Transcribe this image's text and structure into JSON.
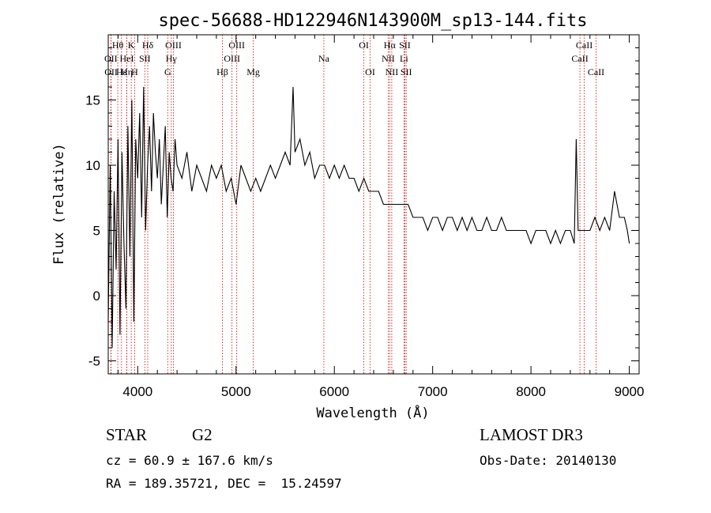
{
  "chart_data": {
    "type": "line",
    "title": "spec-56688-HD122946N143900M_sp13-144.fits",
    "xlabel": "Wavelength (Å)",
    "ylabel": "Flux (relative)",
    "xlim": [
      3700,
      9100
    ],
    "ylim": [
      -6,
      20
    ],
    "xticks": [
      4000,
      5000,
      6000,
      7000,
      8000,
      9000
    ],
    "yticks": [
      -5,
      0,
      5,
      10,
      15
    ],
    "line_color": "#000000",
    "marker_color": "#cc0000",
    "series": [
      {
        "x": [
          3700,
          3720,
          3740,
          3760,
          3780,
          3800,
          3820,
          3840,
          3860,
          3880,
          3900,
          3920,
          3940,
          3960,
          3980,
          4000,
          4020,
          4040,
          4060,
          4080,
          4100,
          4120,
          4140,
          4160,
          4180,
          4200,
          4220,
          4240,
          4260,
          4280,
          4300,
          4320,
          4340,
          4360,
          4380,
          4400,
          4450,
          4500,
          4550,
          4600,
          4650,
          4700,
          4750,
          4800,
          4850,
          4900,
          4950,
          5000,
          5050,
          5100,
          5150,
          5200,
          5250,
          5300,
          5350,
          5400,
          5450,
          5500,
          5550,
          5580,
          5600,
          5650,
          5700,
          5750,
          5800,
          5850,
          5900,
          5950,
          6000,
          6050,
          6100,
          6150,
          6200,
          6250,
          6300,
          6350,
          6400,
          6450,
          6500,
          6550,
          6600,
          6650,
          6700,
          6750,
          6800,
          6850,
          6900,
          6950,
          7000,
          7050,
          7100,
          7150,
          7200,
          7250,
          7300,
          7350,
          7400,
          7450,
          7500,
          7550,
          7600,
          7650,
          7700,
          7750,
          7800,
          7850,
          7900,
          7950,
          8000,
          8050,
          8100,
          8150,
          8200,
          8250,
          8300,
          8350,
          8400,
          8440,
          8460,
          8480,
          8500,
          8550,
          8600,
          8650,
          8700,
          8750,
          8800,
          8850,
          8900,
          8950,
          8980,
          9000
        ],
        "y": [
          -2,
          10,
          -4,
          8,
          2,
          12,
          -3,
          11,
          4,
          -1,
          13,
          3,
          15,
          -2,
          12,
          9,
          14,
          6,
          16,
          5,
          10,
          13,
          8,
          14,
          11,
          9,
          12,
          7,
          10,
          13,
          6,
          11,
          9,
          8,
          12,
          10,
          9,
          11,
          8,
          10,
          9,
          8,
          10,
          9,
          10,
          8,
          9,
          7,
          10,
          9,
          8,
          9,
          8,
          9,
          10,
          9,
          10,
          11,
          10,
          16,
          11,
          12,
          10,
          11,
          9,
          10,
          10,
          9,
          10,
          9,
          10,
          9,
          9,
          8,
          9,
          8,
          8,
          8,
          7,
          7,
          7,
          7,
          7,
          7,
          6,
          6,
          6,
          5,
          6,
          6,
          5,
          6,
          6,
          5,
          6,
          5,
          6,
          5,
          5,
          6,
          5,
          5,
          6,
          5,
          5,
          5,
          5,
          5,
          4,
          5,
          5,
          5,
          4,
          5,
          4,
          5,
          5,
          4,
          12,
          5,
          5,
          5,
          5,
          6,
          5,
          6,
          5,
          8,
          6,
          6,
          5,
          4
        ]
      }
    ],
    "line_markers": [
      {
        "label": "Hθ",
        "x": 3797,
        "row": 0
      },
      {
        "label": "OII",
        "x": 3727,
        "row": 1
      },
      {
        "label": "OII",
        "x": 3729,
        "row": 2
      },
      {
        "label": "Hε",
        "x": 3835,
        "row": 2
      },
      {
        "label": "HeI",
        "x": 3889,
        "row": 1
      },
      {
        "label": "K",
        "x": 3934,
        "row": 0
      },
      {
        "label": "H",
        "x": 3969,
        "row": 2
      },
      {
        "label": "Hη",
        "x": 3889,
        "row": 2
      },
      {
        "label": "SII",
        "x": 4072,
        "row": 1
      },
      {
        "label": "Hδ",
        "x": 4102,
        "row": 0
      },
      {
        "label": "OIII",
        "x": 4363,
        "row": 0
      },
      {
        "label": "Hγ",
        "x": 4341,
        "row": 1
      },
      {
        "label": "G",
        "x": 4305,
        "row": 2
      },
      {
        "label": "OIII",
        "x": 5007,
        "row": 0
      },
      {
        "label": "OIII",
        "x": 4959,
        "row": 1
      },
      {
        "label": "Hβ",
        "x": 4861,
        "row": 2
      },
      {
        "label": "Mg",
        "x": 5175,
        "row": 2
      },
      {
        "label": "Na",
        "x": 5893,
        "row": 1
      },
      {
        "label": "OI",
        "x": 6300,
        "row": 0
      },
      {
        "label": "OI",
        "x": 6364,
        "row": 2
      },
      {
        "label": "Hα",
        "x": 6563,
        "row": 0
      },
      {
        "label": "SII",
        "x": 6717,
        "row": 0
      },
      {
        "label": "NII",
        "x": 6548,
        "row": 1
      },
      {
        "label": "Li",
        "x": 6708,
        "row": 1
      },
      {
        "label": "NII",
        "x": 6584,
        "row": 2
      },
      {
        "label": "SII",
        "x": 6731,
        "row": 2
      },
      {
        "label": "CaII",
        "x": 8542,
        "row": 0
      },
      {
        "label": "CaII",
        "x": 8498,
        "row": 1
      },
      {
        "label": "CaII",
        "x": 8662,
        "row": 2
      }
    ]
  },
  "info": {
    "object_class": "STAR",
    "subclass": "G2",
    "survey": "LAMOST DR3",
    "redshift_text": "cz = 60.9 ± 167.6 km/s",
    "obs_date_text": "Obs-Date: 20140130",
    "coords_text": "RA = 189.35721, DEC =  15.24597"
  }
}
